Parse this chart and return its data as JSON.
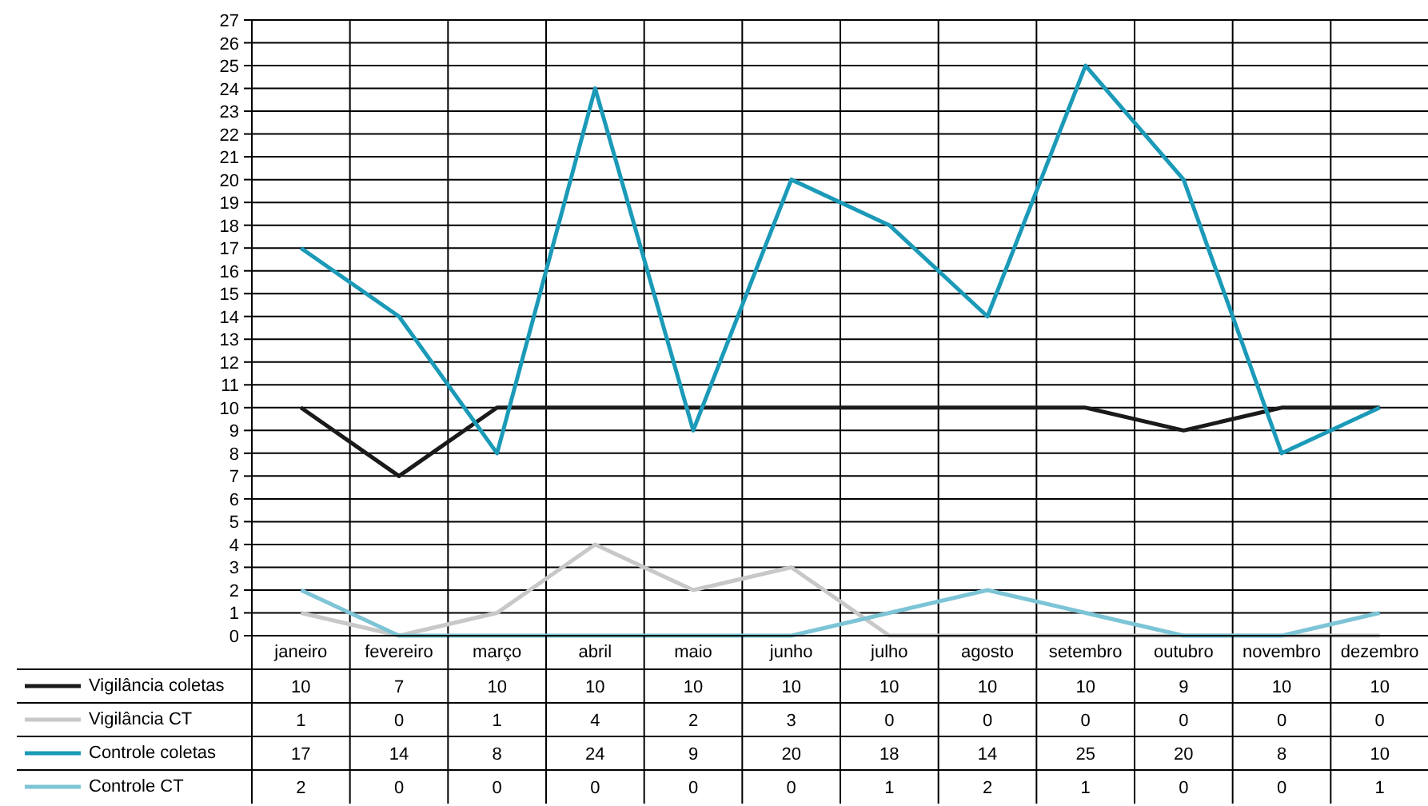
{
  "chart_data": {
    "type": "line",
    "categories": [
      "janeiro",
      "fevereiro",
      "março",
      "abril",
      "maio",
      "junho",
      "julho",
      "agosto",
      "setembro",
      "outubro",
      "novembro",
      "dezembro"
    ],
    "series": [
      {
        "name": "Vigilância coletas",
        "color": "#1a1a1a",
        "values": [
          10,
          7,
          10,
          10,
          10,
          10,
          10,
          10,
          10,
          9,
          10,
          10
        ]
      },
      {
        "name": "Vigilância CT",
        "color": "#c8c8c8",
        "values": [
          1,
          0,
          1,
          4,
          2,
          3,
          0,
          0,
          0,
          0,
          0,
          0
        ]
      },
      {
        "name": "Controle coletas",
        "color": "#1b9ab8",
        "values": [
          17,
          14,
          8,
          24,
          9,
          20,
          18,
          14,
          25,
          20,
          8,
          10
        ]
      },
      {
        "name": "Controle CT",
        "color": "#7cc4d6",
        "values": [
          2,
          0,
          0,
          0,
          0,
          0,
          1,
          2,
          1,
          0,
          0,
          1
        ]
      }
    ],
    "ylim": [
      0,
      27
    ],
    "yticks": [
      0,
      1,
      2,
      3,
      4,
      5,
      6,
      7,
      8,
      9,
      10,
      11,
      12,
      13,
      14,
      15,
      16,
      17,
      18,
      19,
      20,
      21,
      22,
      23,
      24,
      25,
      26,
      27
    ],
    "grid": true,
    "data_labels": true,
    "legend": "bottom left",
    "marker": "none",
    "line_style": "solid"
  }
}
